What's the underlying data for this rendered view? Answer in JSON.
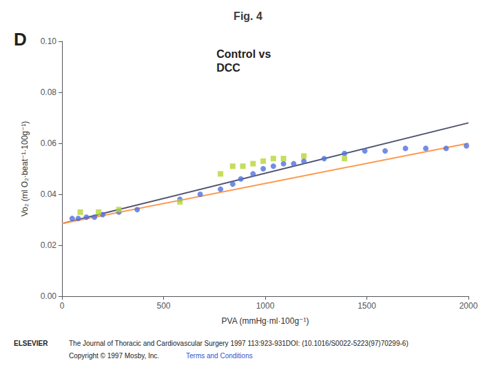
{
  "chart_data": {
    "type": "scatter",
    "title": "Fig. 4",
    "xlabel": "PVA (mmHg·ml·100g⁻¹)",
    "ylabel": "Vo₂ (ml O₂·beat⁻¹·100g⁻¹)",
    "annotations": [
      "D",
      "Control vs\nDCC",
      "ELSEVIER",
      "The Journal of Thoracic and Cardiovascular Surgery 1997 113:923-931DOI: (10.1016/S0022-5223(97)70299-6)",
      "Copyright © 1997 Mosby, Inc.",
      "Terms and Conditions"
    ],
    "xlim": [
      0,
      2000
    ],
    "ylim": [
      0.0,
      0.1
    ],
    "xticks": [
      0,
      500,
      1000,
      1500,
      2000
    ],
    "yticks": [
      {
        "value": 0.0,
        "label": "0.00"
      },
      0.02,
      0.04,
      0.06,
      0.08,
      {
        "value": 0.1,
        "label": "0.10"
      }
    ],
    "grid": false,
    "series": [
      {
        "type": "scatter",
        "marker": "circle",
        "x": [
          50,
          80,
          120,
          160,
          200,
          280,
          370,
          580,
          680,
          780,
          840,
          880,
          940,
          990,
          1040,
          1090,
          1140,
          1190,
          1290,
          1390,
          1490,
          1590,
          1690,
          1790,
          1890,
          1990
        ],
        "values": [
          0.0305,
          0.0305,
          0.031,
          0.031,
          0.032,
          0.033,
          0.034,
          0.038,
          0.04,
          0.042,
          0.044,
          0.046,
          0.048,
          0.05,
          0.051,
          0.052,
          0.052,
          0.053,
          0.054,
          0.056,
          0.057,
          0.057,
          0.058,
          0.058,
          0.058,
          0.059
        ]
      },
      {
        "type": "scatter",
        "marker": "square",
        "x": [
          90,
          180,
          280,
          580,
          780,
          840,
          890,
          940,
          990,
          1040,
          1090,
          1190,
          1390
        ],
        "values": [
          0.033,
          0.033,
          0.034,
          0.037,
          0.048,
          0.051,
          0.051,
          0.052,
          0.053,
          0.054,
          0.054,
          0.055,
          0.054
        ]
      },
      {
        "type": "line",
        "x": [
          0,
          2000
        ],
        "values": [
          0.0285,
          0.068
        ]
      },
      {
        "type": "line",
        "x": [
          0,
          2000
        ],
        "values": [
          0.0285,
          0.06
        ]
      }
    ]
  }
}
